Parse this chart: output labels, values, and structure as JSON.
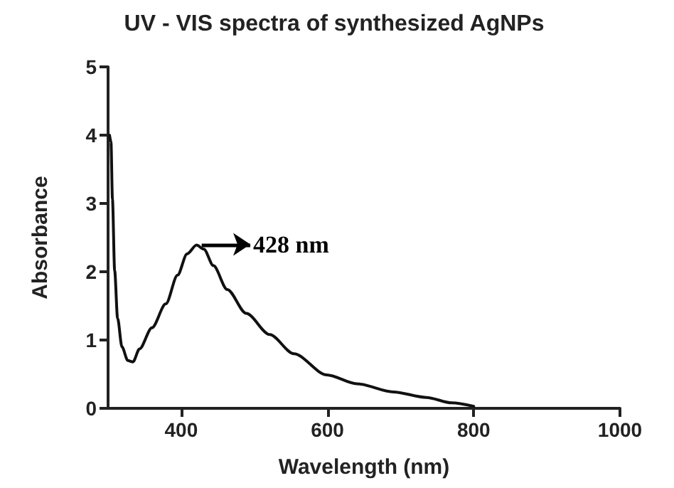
{
  "chart_data": {
    "type": "line",
    "title": "UV - VIS spectra of synthesized AgNPs",
    "xlabel": "Wavelength (nm)",
    "ylabel": "Absorbance",
    "x": [
      302,
      304,
      306,
      309,
      313,
      319,
      327,
      334,
      343,
      360,
      379,
      395,
      408,
      421,
      431,
      444,
      463,
      489,
      521,
      554,
      599,
      640,
      690,
      735,
      770,
      800
    ],
    "series": [
      {
        "color": "#111111",
        "values": [
          4.0,
          3.9,
          3.06,
          2.02,
          1.32,
          0.9,
          0.7,
          0.68,
          0.87,
          1.18,
          1.53,
          1.95,
          2.26,
          2.39,
          2.33,
          2.09,
          1.74,
          1.39,
          1.08,
          0.8,
          0.49,
          0.36,
          0.24,
          0.16,
          0.08,
          0.03
        ]
      }
    ],
    "xlim": [
      300,
      1000
    ],
    "xticks": [
      400,
      600,
      800,
      1000
    ],
    "ylim": [
      0,
      5
    ],
    "yticks": [
      0,
      1,
      2,
      3,
      4,
      5
    ],
    "annotations": [
      {
        "text": "428 nm",
        "x": 428,
        "y": 2.4
      }
    ],
    "grid": false,
    "marker": "none",
    "line_style": "solid"
  }
}
